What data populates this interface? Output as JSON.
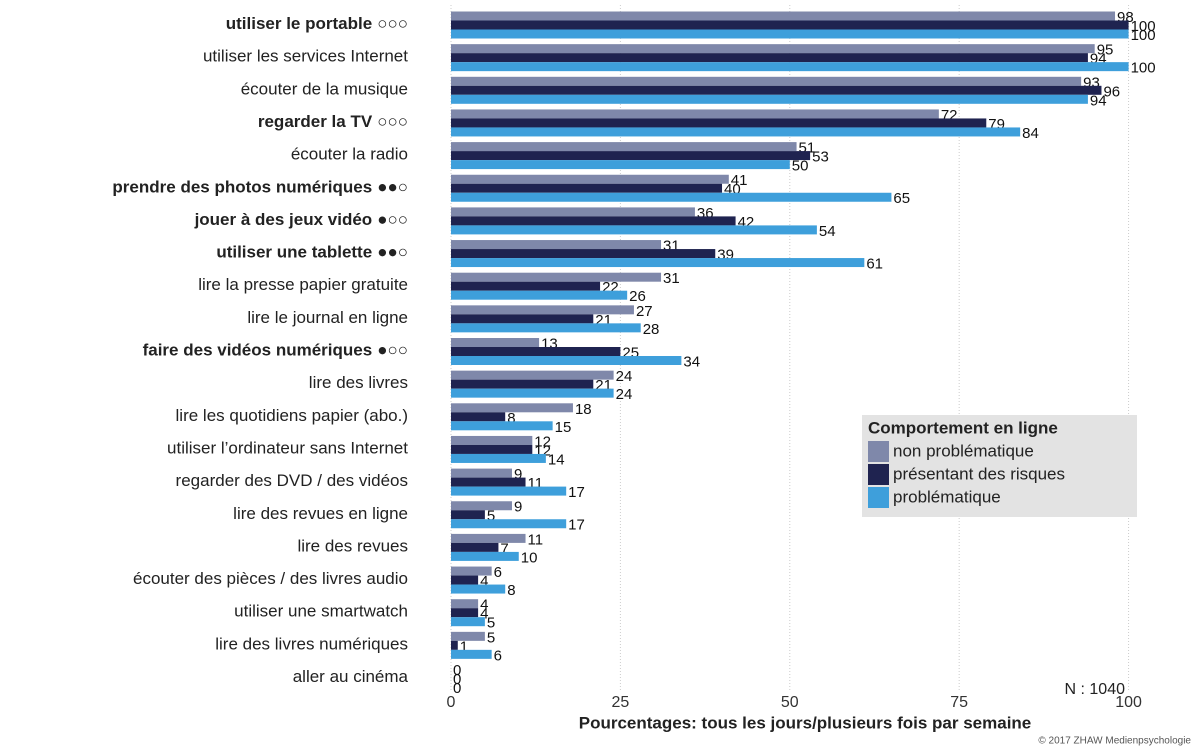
{
  "chart_data": {
    "type": "bar",
    "orientation": "horizontal",
    "categories": [
      "utiliser le portable",
      "utiliser les services Internet",
      "écouter de la musique",
      "regarder la TV",
      "écouter la radio",
      "prendre des photos numériques",
      "jouer à des jeux vidéo",
      "utiliser une tablette",
      "lire la presse papier gratuite",
      "lire le journal en ligne",
      "faire des vidéos numériques",
      "lire des livres",
      "lire les quotidiens papier (abo.)",
      "utiliser l’ordinateur sans Internet",
      "regarder des DVD / des vidéos",
      "lire des revues en ligne",
      "lire des revues",
      "écouter des pièces / des livres audio",
      "utiliser une smartwatch",
      "lire des livres numériques",
      "aller au cinéma"
    ],
    "markers": [
      "○○○",
      null,
      null,
      "○○○",
      null,
      "●●○",
      "●○○",
      "●●○",
      null,
      null,
      "●○○",
      null,
      null,
      null,
      null,
      null,
      null,
      null,
      null,
      null,
      null
    ],
    "series": [
      {
        "name": "non problématique",
        "color": "#7f88aa",
        "values": [
          98,
          95,
          93,
          72,
          51,
          41,
          36,
          31,
          31,
          27,
          13,
          24,
          18,
          12,
          9,
          9,
          11,
          6,
          4,
          5,
          0
        ]
      },
      {
        "name": "présentant des risques",
        "color": "#1f2350",
        "values": [
          100,
          94,
          96,
          79,
          53,
          40,
          42,
          39,
          22,
          21,
          25,
          21,
          8,
          12,
          11,
          5,
          7,
          4,
          4,
          1,
          0
        ]
      },
      {
        "name": "problématique",
        "color": "#3e9fdb",
        "values": [
          100,
          100,
          94,
          84,
          50,
          65,
          54,
          61,
          26,
          28,
          34,
          24,
          15,
          14,
          17,
          17,
          10,
          8,
          5,
          6,
          0
        ]
      }
    ],
    "xlim": [
      0,
      107
    ],
    "xticks": [
      0,
      25,
      50,
      75,
      100
    ],
    "grid": true,
    "xlabel": "Pourcentages: tous les jours/plusieurs fois par semaine",
    "legend_title": "Comportement en ligne",
    "legend_position": "right",
    "annotation": "N : 1040",
    "credit": "© 2017 ZHAW Medienpsychologie"
  }
}
